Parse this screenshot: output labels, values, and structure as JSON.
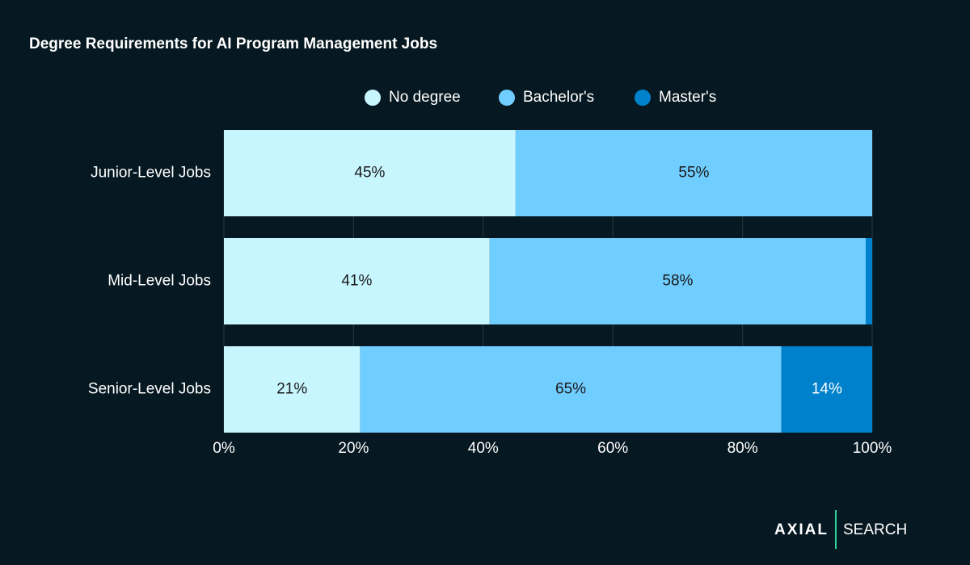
{
  "chart_data": {
    "type": "stacked-barh",
    "title": "Degree Requirements for AI Program Management Jobs",
    "categories": [
      "Junior-Level Jobs",
      "Mid-Level Jobs",
      "Senior-Level Jobs"
    ],
    "series": [
      {
        "name": "No degree",
        "color": "#c8f6ff",
        "label_color": "#1a1a1a",
        "values": [
          45,
          41,
          21
        ],
        "value_labels": [
          "45%",
          "41%",
          "21%"
        ]
      },
      {
        "name": "Bachelor's",
        "color": "#70cdff",
        "label_color": "#1a1a1a",
        "values": [
          55,
          58,
          65
        ],
        "value_labels": [
          "55%",
          "58%",
          "65%"
        ]
      },
      {
        "name": "Master's",
        "color": "#0081cc",
        "label_color": "#ffffff",
        "values": [
          0,
          1,
          14
        ],
        "value_labels": [
          null,
          null,
          "14%"
        ]
      }
    ],
    "xlim": [
      0,
      100
    ],
    "xticks": [
      {
        "value": 0,
        "label": "0%"
      },
      {
        "value": 20,
        "label": "20%"
      },
      {
        "value": 40,
        "label": "40%"
      },
      {
        "value": 60,
        "label": "60%"
      },
      {
        "value": 80,
        "label": "80%"
      },
      {
        "value": 100,
        "label": "100%"
      }
    ],
    "grid": true,
    "legend": "top"
  },
  "logo": {
    "left": "AXIAL",
    "right": "SEARCH"
  }
}
